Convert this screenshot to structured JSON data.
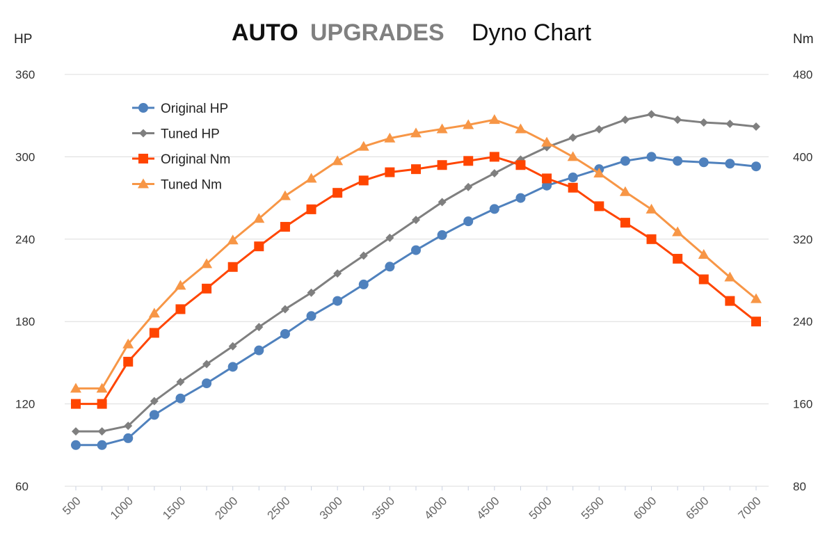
{
  "chart_data": {
    "type": "line",
    "title": {
      "brand_part1": "AUTO",
      "brand_part2": "UPGRADES",
      "text": "Dyno Chart"
    },
    "ylabel_left": "HP",
    "ylabel_right": "Nm",
    "ylim_left": [
      60,
      360
    ],
    "ylim_right": [
      80,
      480
    ],
    "yticks_left": [
      "60",
      "120",
      "180",
      "240",
      "300",
      "360"
    ],
    "yticks_right": [
      "80",
      "160",
      "240",
      "320",
      "400",
      "480"
    ],
    "x": [
      500,
      750,
      1000,
      1250,
      1500,
      1750,
      2000,
      2250,
      2500,
      2750,
      3000,
      3250,
      3500,
      3750,
      4000,
      4250,
      4500,
      4750,
      5000,
      5250,
      5500,
      5750,
      6000,
      6250,
      6500,
      6750,
      7000
    ],
    "xticks": [
      "500",
      "1000",
      "1500",
      "2000",
      "2500",
      "3000",
      "3500",
      "4000",
      "4500",
      "5000",
      "5500",
      "6000",
      "6500",
      "7000"
    ],
    "grid": true,
    "legend_position": "top-left",
    "series": [
      {
        "name": "Original HP",
        "axis": "left",
        "color": "#4f81bd",
        "marker": "circle",
        "values": [
          90,
          90,
          95,
          112,
          124,
          135,
          147,
          159,
          171,
          184,
          195,
          207,
          220,
          232,
          243,
          253,
          262,
          270,
          279,
          285,
          291,
          297,
          300,
          297,
          296,
          295,
          293
        ]
      },
      {
        "name": "Tuned HP",
        "axis": "left",
        "color": "#7f7f7f",
        "marker": "diamond",
        "values": [
          100,
          100,
          104,
          122,
          136,
          149,
          162,
          176,
          189,
          201,
          215,
          228,
          241,
          254,
          267,
          278,
          288,
          298,
          307,
          314,
          320,
          327,
          331,
          327,
          325,
          324,
          322
        ]
      },
      {
        "name": "Original Nm",
        "axis": "right",
        "color": "#ff4500",
        "marker": "square",
        "values": [
          160,
          160,
          201,
          229,
          252,
          272,
          293,
          313,
          332,
          349,
          365,
          377,
          385,
          388,
          392,
          396,
          400,
          392,
          379,
          370,
          352,
          336,
          320,
          301,
          281,
          260,
          240
        ]
      },
      {
        "name": "Tuned Nm",
        "axis": "right",
        "color": "#f79646",
        "marker": "triangle",
        "values": [
          175,
          175,
          218,
          248,
          275,
          296,
          319,
          340,
          362,
          379,
          396,
          410,
          418,
          423,
          427,
          431,
          436,
          427,
          414,
          400,
          384,
          366,
          349,
          327,
          305,
          283,
          262
        ]
      }
    ]
  }
}
